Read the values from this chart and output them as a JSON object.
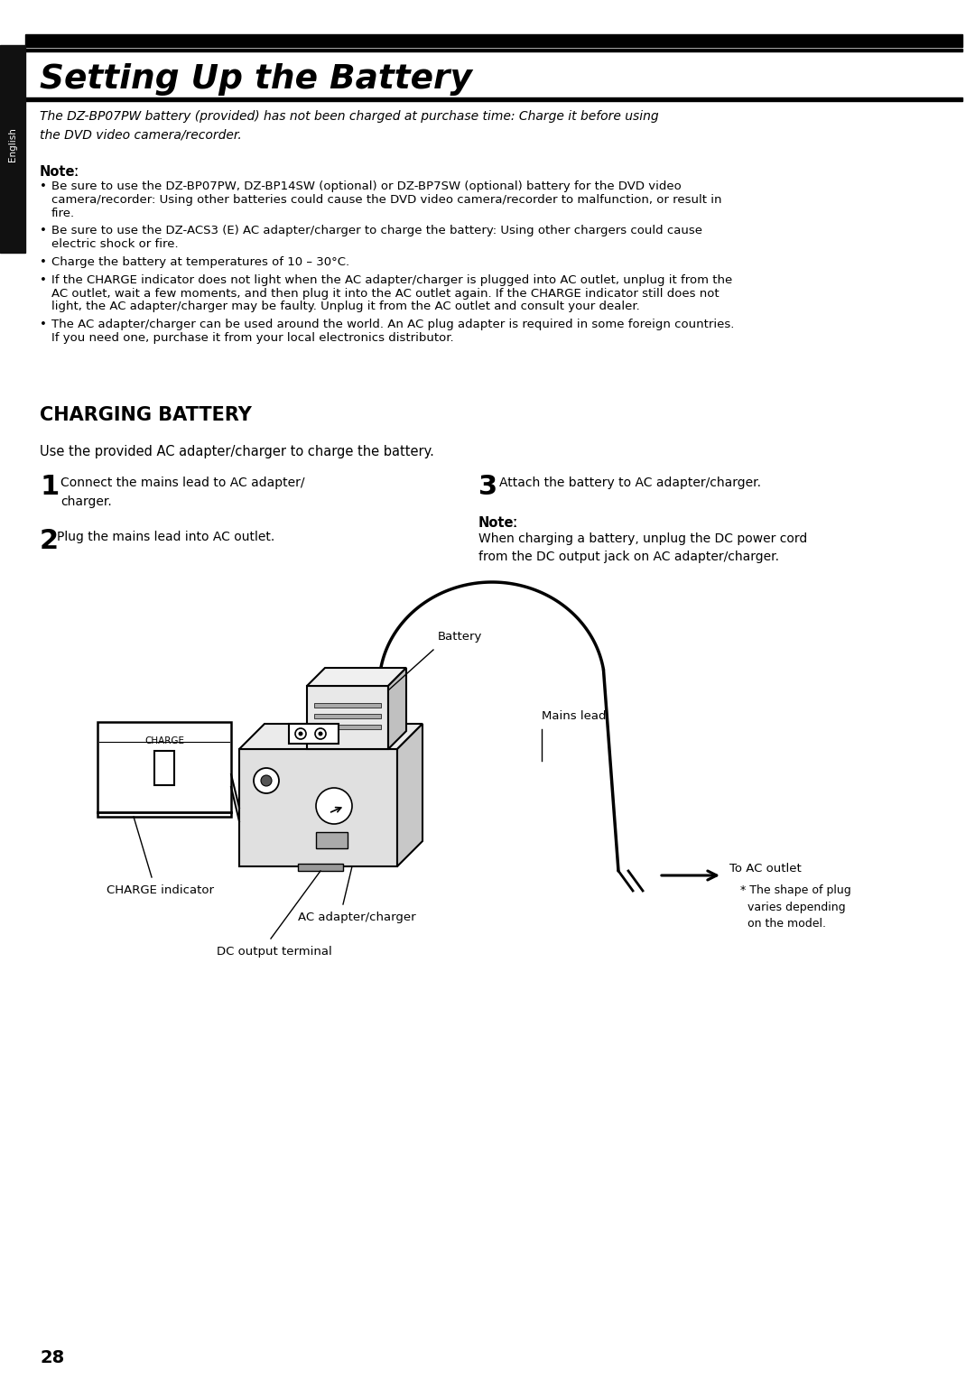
{
  "title": "Setting Up the Battery",
  "sidebar_text": "English",
  "intro_italic": "The DZ-BP07PW battery (provided) has not been charged at purchase time: Charge it before using\nthe DVD video camera/recorder.",
  "note_label": "Noteː",
  "note_bullets": [
    "Be sure to use the DZ-BP07PW, DZ-BP14SW (optional) or DZ-BP7SW (optional) battery for the DVD video\ncamera/recorder: Using other batteries could cause the DVD video camera/recorder to malfunction, or result in\nfire.",
    "Be sure to use the DZ-ACS3 (E) AC adapter/charger to charge the battery: Using other chargers could cause\nelectric shock or fire.",
    "Charge the battery at temperatures of 10 – 30°C.",
    "If the CHARGE indicator does not light when the AC adapter/charger is plugged into AC outlet, unplug it from the\nAC outlet, wait a few moments, and then plug it into the AC outlet again. If the CHARGE indicator still does not\nlight, the AC adapter/charger may be faulty. Unplug it from the AC outlet and consult your dealer.",
    "The AC adapter/charger can be used around the world. An AC plug adapter is required in some foreign countries.\nIf you need one, purchase it from your local electronics distributor."
  ],
  "section_title": "CHARGING BATTERY",
  "use_text": "Use the provided AC adapter/charger to charge the battery.",
  "step1_num": "1",
  "step1_text": "Connect the mains lead to AC adapter/\ncharger.",
  "step2_num": "2",
  "step2_text": "Plug the mains lead into AC outlet.",
  "step3_num": "3",
  "step3_text": "Attach the battery to AC adapter/charger.",
  "note2_label": "Noteː",
  "note2_text": "When charging a battery, unplug the DC power cord\nfrom the DC output jack on AC adapter/charger.",
  "label_battery": "Battery",
  "label_mains": "Mains lead",
  "label_charge_indicator": "CHARGE indicator",
  "label_ac_adapter": "AC adapter/charger",
  "label_dc_output": "DC output terminal",
  "label_to_ac": "To AC outlet",
  "label_plug_note": "* The shape of plug\n  varies depending\n  on the model.",
  "label_charge_box": "CHARGE",
  "page_number": "28",
  "bg_color": "#ffffff"
}
